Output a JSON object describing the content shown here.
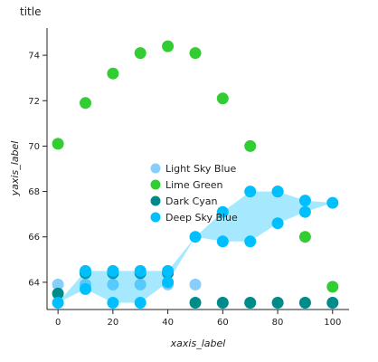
{
  "chart_data": {
    "type": "area",
    "title": "title",
    "xlabel": "xaxis_label",
    "ylabel": "yaxis_label",
    "xlim": [
      -4,
      106
    ],
    "ylim": [
      62.8,
      75.2
    ],
    "x_ticks": [
      "0",
      "20",
      "40",
      "60",
      "80",
      "100"
    ],
    "y_ticks": [
      "64",
      "66",
      "68",
      "70",
      "72",
      "74"
    ],
    "x_tick_values": [
      0,
      20,
      40,
      60,
      80,
      100
    ],
    "y_tick_values": [
      64,
      66,
      68,
      70,
      72,
      74
    ],
    "legend_position": "center",
    "series": [
      {
        "name": "Light Sky Blue",
        "color": "#87CEFA",
        "x": [
          0,
          10,
          20,
          30,
          40,
          50,
          60,
          70,
          80,
          90,
          100
        ],
        "upper": [
          63.9,
          63.9,
          63.9,
          63.9,
          63.9,
          63.9,
          63.1,
          63.1,
          63.1,
          63.1,
          63.1
        ],
        "lower": [
          63.9,
          63.9,
          63.9,
          63.9,
          63.9,
          63.9,
          63.1,
          63.1,
          63.1,
          63.1,
          63.1
        ]
      },
      {
        "name": "Lime Green",
        "color": "#32CD32",
        "x": [
          0,
          10,
          20,
          30,
          40,
          50,
          60,
          70,
          80,
          90,
          100
        ],
        "upper": [
          70.1,
          71.9,
          73.2,
          74.1,
          74.4,
          74.1,
          72.1,
          70.0,
          68.0,
          66.0,
          63.8
        ],
        "lower": [
          70.1,
          71.9,
          73.2,
          74.1,
          74.4,
          74.1,
          72.1,
          70.0,
          68.0,
          66.0,
          63.8
        ]
      },
      {
        "name": "Dark Cyan",
        "color": "#008B8B",
        "x": [
          0,
          10,
          20,
          30,
          40,
          50,
          60,
          70,
          80,
          90,
          100
        ],
        "upper": [
          63.5,
          64.4,
          64.4,
          64.4,
          64.4,
          63.1,
          63.1,
          63.1,
          63.1,
          63.1,
          63.1
        ],
        "lower": [
          63.5,
          64.4,
          64.4,
          64.4,
          64.4,
          63.1,
          63.1,
          63.1,
          63.1,
          63.1,
          63.1
        ]
      },
      {
        "name": "Deep Sky Blue",
        "color": "#00BFFF",
        "x": [
          0,
          10,
          20,
          30,
          40,
          50,
          60,
          70,
          80,
          90,
          100
        ],
        "upper": [
          63.1,
          64.5,
          64.5,
          64.5,
          64.5,
          66.0,
          67.1,
          68.0,
          68.0,
          67.6,
          67.5
        ],
        "lower": [
          63.1,
          63.7,
          63.1,
          63.1,
          64.0,
          66.0,
          65.8,
          65.8,
          66.6,
          67.1,
          67.5
        ]
      }
    ]
  }
}
